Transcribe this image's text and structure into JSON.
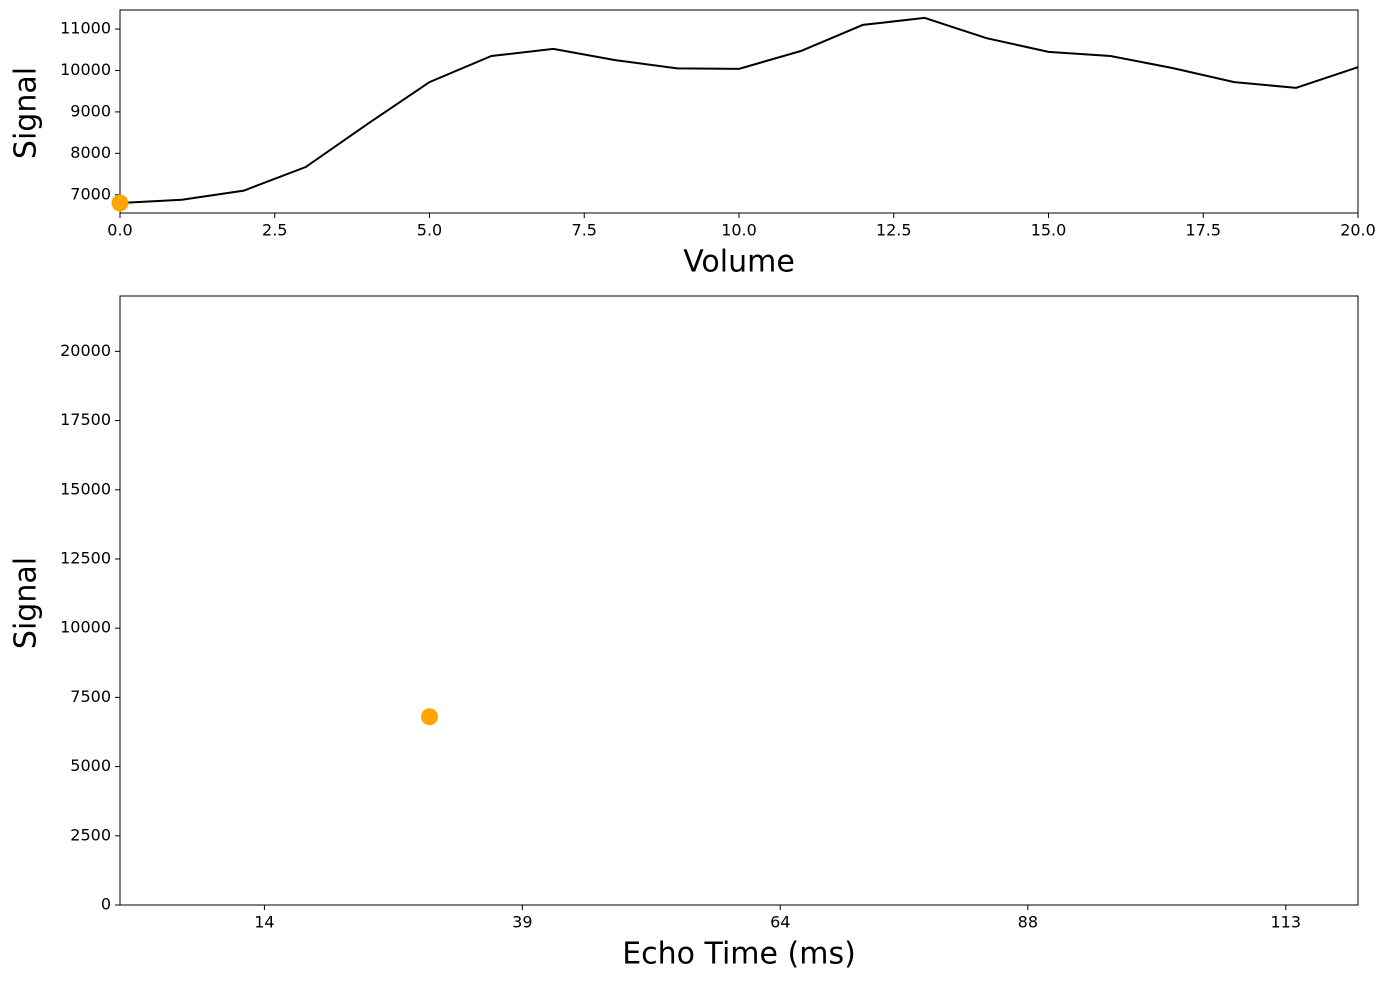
{
  "chart_data": [
    {
      "type": "line",
      "xlabel": "Volume",
      "ylabel": "Signal",
      "xlim": [
        0,
        20
      ],
      "ylim": [
        6560,
        11460
      ],
      "xticks": [
        {
          "value": 0,
          "label": "0.0"
        },
        {
          "value": 2.5,
          "label": "2.5"
        },
        {
          "value": 5,
          "label": "5.0"
        },
        {
          "value": 7.5,
          "label": "7.5"
        },
        {
          "value": 10,
          "label": "10.0"
        },
        {
          "value": 12.5,
          "label": "12.5"
        },
        {
          "value": 15,
          "label": "15.0"
        },
        {
          "value": 17.5,
          "label": "17.5"
        },
        {
          "value": 20,
          "label": "20.0"
        }
      ],
      "yticks": [
        7000,
        8000,
        9000,
        10000,
        11000
      ],
      "series": [
        {
          "color": "#000000",
          "x": [
            0,
            1,
            2,
            3,
            4,
            5,
            6,
            7,
            8,
            9,
            10,
            11,
            12,
            13,
            14,
            15,
            16,
            17,
            18,
            19,
            20
          ],
          "values": [
            6800,
            6880,
            7100,
            7670,
            8710,
            9720,
            10350,
            10520,
            10250,
            10050,
            10040,
            10470,
            11100,
            11270,
            10780,
            10450,
            10350,
            10060,
            9720,
            9580,
            10080
          ]
        },
        {
          "color": "#ffa500",
          "marker": true,
          "x": [
            0
          ],
          "values": [
            6800
          ]
        }
      ]
    },
    {
      "type": "scatter",
      "xlabel": "Echo Time (ms)",
      "ylabel": "Signal",
      "xlim": [
        0,
        120
      ],
      "ylim": [
        0,
        22000
      ],
      "xticks": [
        14,
        39,
        64,
        88,
        113
      ],
      "yticks": [
        0,
        2500,
        5000,
        7500,
        10000,
        12500,
        15000,
        17500,
        20000
      ],
      "series": [
        {
          "color": "#ffa500",
          "marker": true,
          "x": [
            30
          ],
          "values": [
            6800
          ]
        }
      ]
    }
  ]
}
